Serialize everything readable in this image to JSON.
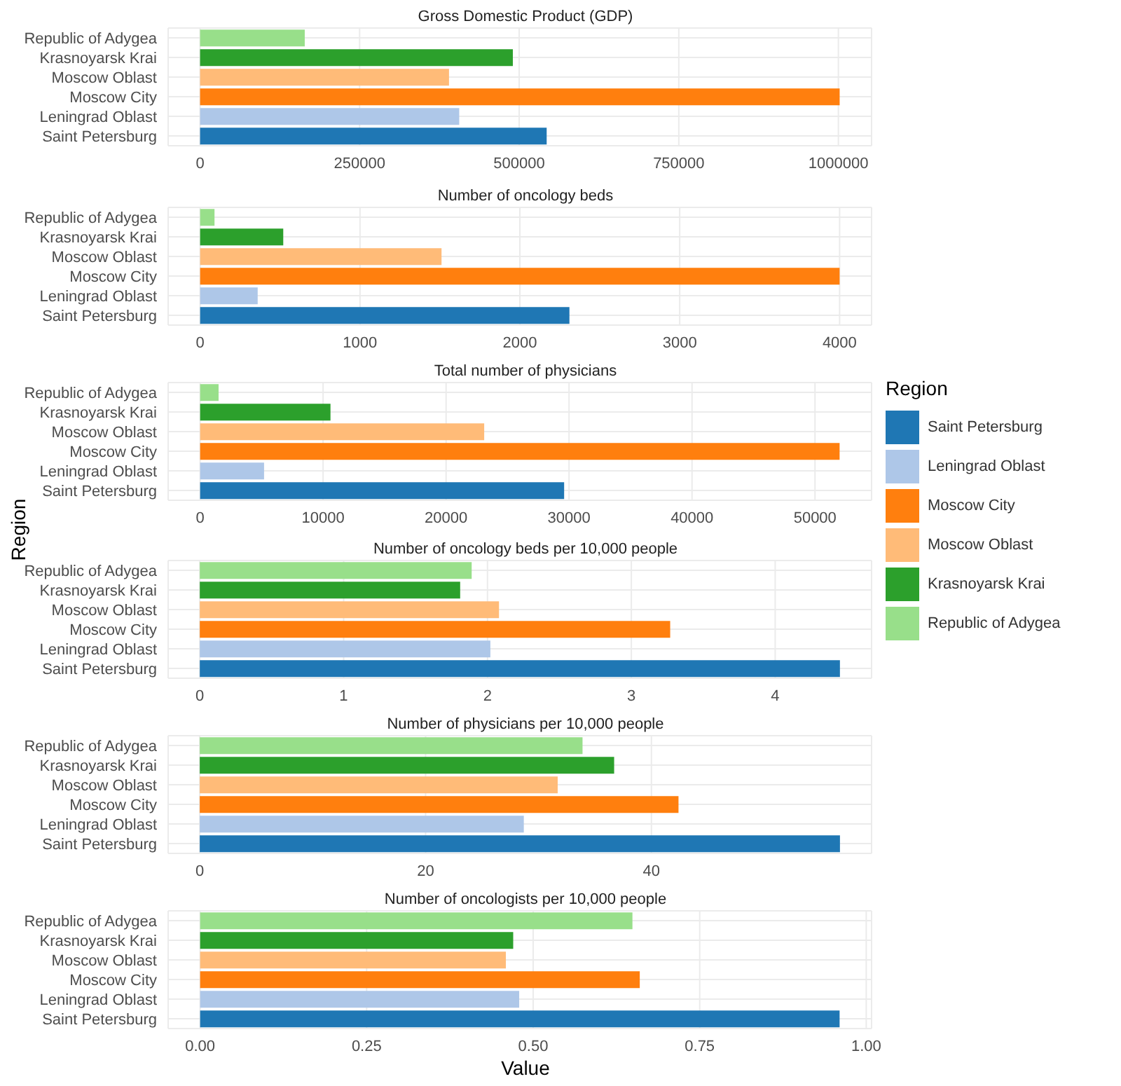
{
  "chart_data": [
    {
      "type": "bar",
      "orientation": "horizontal",
      "title": "Gross Domestic Product (GDP)",
      "categories": [
        "Republic of Adygea",
        "Krasnoyarsk Krai",
        "Moscow Oblast",
        "Moscow City",
        "Leningrad Oblast",
        "Saint Petersburg"
      ],
      "values": [
        164000,
        490000,
        390000,
        1002000,
        406000,
        543000
      ],
      "colors": [
        "#98df8a",
        "#2ca02c",
        "#ffbb78",
        "#ff7f0e",
        "#aec7e8",
        "#1f77b4"
      ],
      "xlim": [
        -50000,
        1052000
      ],
      "xticks": [
        0,
        250000,
        500000,
        750000,
        1000000
      ],
      "grid": true
    },
    {
      "type": "bar",
      "orientation": "horizontal",
      "title": "Number of oncology beds",
      "categories": [
        "Republic of Adygea",
        "Krasnoyarsk Krai",
        "Moscow Oblast",
        "Moscow City",
        "Leningrad Oblast",
        "Saint Petersburg"
      ],
      "values": [
        90,
        520,
        1510,
        4000,
        360,
        2310
      ],
      "colors": [
        "#98df8a",
        "#2ca02c",
        "#ffbb78",
        "#ff7f0e",
        "#aec7e8",
        "#1f77b4"
      ],
      "xlim": [
        -200,
        4200
      ],
      "xticks": [
        0,
        1000,
        2000,
        3000,
        4000
      ],
      "grid": true
    },
    {
      "type": "bar",
      "orientation": "horizontal",
      "title": "Total number of physicians",
      "ylabel": "Region",
      "legend_title": "Region",
      "categories": [
        "Republic of Adygea",
        "Krasnoyarsk Krai",
        "Moscow Oblast",
        "Moscow City",
        "Leningrad Oblast",
        "Saint Petersburg"
      ],
      "values": [
        1500,
        10600,
        23100,
        52000,
        5200,
        29600
      ],
      "colors": [
        "#98df8a",
        "#2ca02c",
        "#ffbb78",
        "#ff7f0e",
        "#aec7e8",
        "#1f77b4"
      ],
      "xlim": [
        -2600,
        54600
      ],
      "xticks": [
        0,
        10000,
        20000,
        30000,
        40000,
        50000
      ],
      "grid": true
    },
    {
      "type": "bar",
      "orientation": "horizontal",
      "title": "Number of oncology beds per 10,000 people",
      "categories": [
        "Republic of Adygea",
        "Krasnoyarsk Krai",
        "Moscow Oblast",
        "Moscow City",
        "Leningrad Oblast",
        "Saint Petersburg"
      ],
      "values": [
        1.89,
        1.81,
        2.08,
        3.27,
        2.02,
        4.45
      ],
      "colors": [
        "#98df8a",
        "#2ca02c",
        "#ffbb78",
        "#ff7f0e",
        "#aec7e8",
        "#1f77b4"
      ],
      "xlim": [
        -0.22,
        4.67
      ],
      "xticks": [
        0,
        1,
        2,
        3,
        4
      ],
      "grid": true
    },
    {
      "type": "bar",
      "orientation": "horizontal",
      "title": "Number of physicians per 10,000 people",
      "categories": [
        "Republic of Adygea",
        "Krasnoyarsk Krai",
        "Moscow Oblast",
        "Moscow City",
        "Leningrad Oblast",
        "Saint Petersburg"
      ],
      "values": [
        33.9,
        36.7,
        31.7,
        42.4,
        28.7,
        56.7
      ],
      "colors": [
        "#98df8a",
        "#2ca02c",
        "#ffbb78",
        "#ff7f0e",
        "#aec7e8",
        "#1f77b4"
      ],
      "xlim": [
        -2.8,
        59.5
      ],
      "xticks": [
        0,
        20,
        40
      ],
      "grid": true
    },
    {
      "type": "bar",
      "orientation": "horizontal",
      "title": "Number of oncologists per 10,000 people",
      "xlabel": "Value",
      "categories": [
        "Republic of Adygea",
        "Krasnoyarsk Krai",
        "Moscow Oblast",
        "Moscow City",
        "Leningrad Oblast",
        "Saint Petersburg"
      ],
      "values": [
        0.649,
        0.47,
        0.459,
        0.66,
        0.479,
        0.96
      ],
      "colors": [
        "#98df8a",
        "#2ca02c",
        "#ffbb78",
        "#ff7f0e",
        "#aec7e8",
        "#1f77b4"
      ],
      "xlim": [
        -0.048,
        1.008
      ],
      "xticks": [
        {
          "value": 0,
          "label": "0.00"
        },
        {
          "value": 0.25,
          "label": "0.25"
        },
        {
          "value": 0.5,
          "label": "0.50"
        },
        {
          "value": 0.75,
          "label": "0.75"
        },
        {
          "value": 1,
          "label": "1.00"
        }
      ],
      "grid": true
    }
  ]
}
